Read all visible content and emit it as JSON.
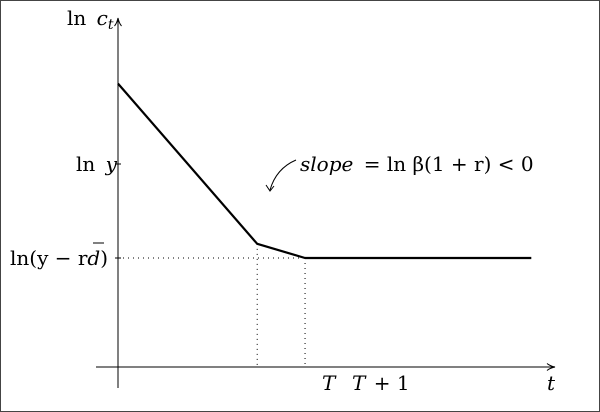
{
  "chart_data": {
    "type": "line",
    "title": "",
    "xlabel": "t",
    "ylabel": "ln c_t",
    "series": [
      {
        "x": [
          0,
          3.2,
          4.3,
          9.5
        ],
        "y": [
          1.6,
          0.13,
          0.0,
          0.0
        ]
      }
    ],
    "x_ticks": [
      {
        "value": 3.2,
        "label": "T"
      },
      {
        "value": 4.3,
        "label": "T + 1"
      }
    ],
    "y_ticks": [
      {
        "value": 0.88,
        "label": "ln y"
      },
      {
        "value": 0.0,
        "label": "ln(y − rd̄)"
      }
    ],
    "annotation": {
      "text": "slope = ln β(1 + r) < 0",
      "slope_word": "slope",
      "rest": "= ln β(1 + r) < 0"
    },
    "grid": false,
    "legend": "none"
  },
  "labels": {
    "y_axis": {
      "ln": "ln",
      "c": "c",
      "sub": "t"
    },
    "x_axis": "t",
    "y_tick_ln_y": {
      "ln": "ln",
      "y": "y"
    },
    "y_tick_floor": {
      "pre": "ln(y − r",
      "d": "d",
      "post": ")"
    },
    "x_tick_T": "T",
    "x_tick_T1": {
      "T": "T",
      "rest": "+ 1"
    }
  }
}
